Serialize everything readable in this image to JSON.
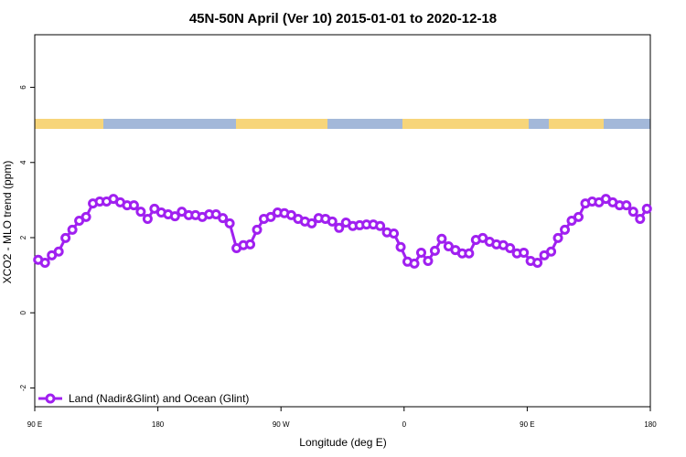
{
  "chart_data": {
    "type": "line",
    "title": "45N-50N April (Ver 10)   2015-01-01 to 2020-12-18",
    "x_label": "Longitude (deg E)",
    "y_label": "XCO2 - MLO trend (ppm)",
    "legend": "bottom-left",
    "xlim": [
      90,
      540
    ],
    "xticks": [
      {
        "value": 90,
        "label": "90 E"
      },
      {
        "value": 180,
        "label": "180"
      },
      {
        "value": 270,
        "label": "90 W"
      },
      {
        "value": 360,
        "label": "0"
      },
      {
        "value": 450,
        "label": "90 E"
      },
      {
        "value": 540,
        "label": "180"
      }
    ],
    "ylim": [
      -2.5,
      7.4
    ],
    "yticks": [
      -2,
      0,
      2,
      4,
      6
    ],
    "x": [
      92.5,
      97.5,
      102.5,
      107.5,
      112.5,
      117.5,
      122.5,
      127.5,
      132.5,
      137.5,
      142.5,
      147.5,
      152.5,
      157.5,
      162.5,
      167.5,
      172.5,
      177.5,
      182.5,
      187.5,
      192.5,
      197.5,
      202.5,
      207.5,
      212.5,
      217.5,
      222.5,
      227.5,
      232.5,
      237.5,
      242.5,
      247.5,
      252.5,
      257.5,
      262.5,
      267.5,
      272.5,
      277.5,
      282.5,
      287.5,
      292.5,
      297.5,
      302.5,
      307.5,
      312.5,
      317.5,
      322.5,
      327.5,
      332.5,
      337.5,
      342.5,
      347.5,
      352.5,
      357.5,
      362.5,
      367.5,
      372.5,
      377.5,
      382.5,
      387.5,
      392.5,
      397.5,
      402.5,
      407.5,
      412.5,
      417.5,
      422.5,
      427.5,
      432.5,
      437.5,
      442.5,
      447.5,
      452.5,
      457.5,
      462.5,
      467.5,
      472.5,
      477.5,
      482.5,
      487.5,
      492.5,
      497.5,
      502.5,
      507.5,
      512.5,
      517.5,
      522.5,
      527.5,
      532.5,
      537.5
    ],
    "series": [
      {
        "name": "Land (Nadir&Glint) and Ocean (Glint)",
        "color": "#a020f0",
        "values": [
          1.41,
          1.33,
          1.53,
          1.63,
          1.99,
          2.21,
          2.45,
          2.55,
          2.91,
          2.96,
          2.96,
          3.03,
          2.94,
          2.86,
          2.86,
          2.69,
          2.5,
          2.77,
          2.67,
          2.62,
          2.57,
          2.69,
          2.6,
          2.6,
          2.55,
          2.62,
          2.62,
          2.52,
          2.38,
          1.72,
          1.8,
          1.82,
          2.21,
          2.5,
          2.55,
          2.67,
          2.65,
          2.6,
          2.5,
          2.43,
          2.38,
          2.52,
          2.5,
          2.43,
          2.26,
          2.4,
          2.31,
          2.33,
          2.35,
          2.35,
          2.31,
          2.14,
          2.11,
          1.75,
          1.36,
          1.31,
          1.6,
          1.38,
          1.65,
          1.97,
          1.77,
          1.67,
          1.58,
          1.58,
          1.94,
          1.99,
          1.89,
          1.82,
          1.8,
          1.72,
          1.58,
          1.6,
          1.38,
          1.33,
          1.53,
          1.63,
          1.99,
          2.21,
          2.45,
          2.55,
          2.91,
          2.96,
          2.94,
          3.03,
          2.94,
          2.86,
          2.86,
          2.69,
          2.5,
          2.77
        ]
      }
    ]
  }
}
